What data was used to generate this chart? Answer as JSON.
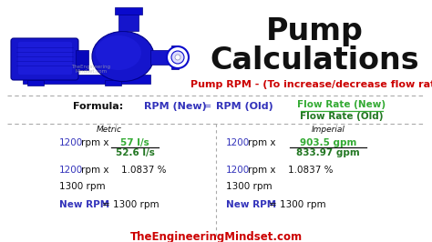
{
  "title_line1": "Pump",
  "title_line2": "Calculations",
  "subtitle": "Pump RPM - (To increase/decrease flow rate)",
  "formula_label": "Formula:",
  "formula_new": "RPM (New)",
  "formula_eq": "=",
  "formula_old": "RPM (Old)",
  "flow_rate_new": "Flow Rate (New)",
  "flow_rate_old": "Flow Rate (Old)",
  "metric_label": "Metric",
  "imperial_label": "Imperial",
  "footer": "TheEngineeringMindset.com",
  "bg_color": "#ffffff",
  "title_color": "#000000",
  "subtitle_color": "#cc0000",
  "blue_color": "#3333bb",
  "green_color": "#33aa33",
  "dark_green": "#227722",
  "black": "#111111",
  "footer_color": "#cc0000",
  "pump_body_color": "#1515cc",
  "pump_highlight": "#2828ee"
}
